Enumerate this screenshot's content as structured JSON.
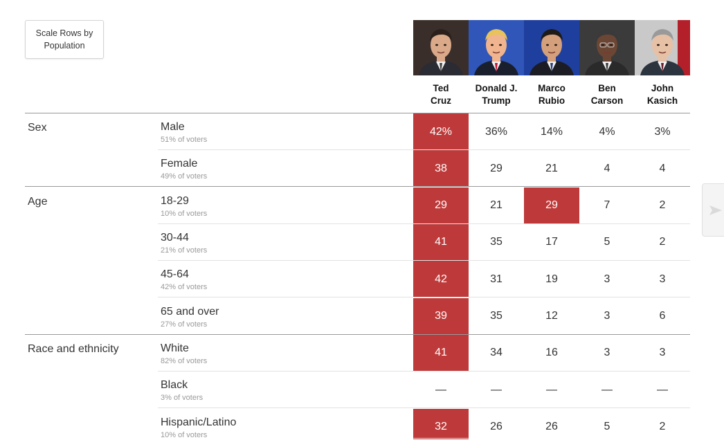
{
  "controls": {
    "scale_button_label": "Scale Rows by Population"
  },
  "colors": {
    "winner": "#be3a3a",
    "separator_strong": "#999999",
    "separator_light": "#e2e2e2",
    "muted_text": "#999999"
  },
  "chart_data": {
    "type": "table",
    "columns": [
      "Ted Cruz",
      "Donald J. Trump",
      "Marco Rubio",
      "Ben Carson",
      "John Kasich"
    ],
    "candidates": [
      {
        "name": "Ted\nCruz",
        "photo": "ted-cruz-photo",
        "bg": "#3a2e2a"
      },
      {
        "name": "Donald J.\nTrump",
        "photo": "donald-trump-photo",
        "bg": "#2f56b8"
      },
      {
        "name": "Marco\nRubio",
        "photo": "marco-rubio-photo",
        "bg": "#1f3f9e"
      },
      {
        "name": "Ben\nCarson",
        "photo": "ben-carson-photo",
        "bg": "#3b3b3b"
      },
      {
        "name": "John\nKasich",
        "photo": "john-kasich-photo",
        "bg": "#c9c9c9"
      }
    ],
    "groups": [
      {
        "label": "Sex",
        "rows": [
          {
            "label": "Male",
            "share": "51% of voters",
            "values": [
              "42%",
              "36%",
              "14%",
              "4%",
              "3%"
            ],
            "winners": [
              0
            ]
          },
          {
            "label": "Female",
            "share": "49% of voters",
            "values": [
              "38",
              "29",
              "21",
              "4",
              "4"
            ],
            "winners": [
              0
            ]
          }
        ]
      },
      {
        "label": "Age",
        "rows": [
          {
            "label": "18-29",
            "share": "10% of voters",
            "values": [
              "29",
              "21",
              "29",
              "7",
              "2"
            ],
            "winners": [
              0,
              2
            ]
          },
          {
            "label": "30-44",
            "share": "21% of voters",
            "values": [
              "41",
              "35",
              "17",
              "5",
              "2"
            ],
            "winners": [
              0
            ]
          },
          {
            "label": "45-64",
            "share": "42% of voters",
            "values": [
              "42",
              "31",
              "19",
              "3",
              "3"
            ],
            "winners": [
              0
            ]
          },
          {
            "label": "65 and over",
            "share": "27% of voters",
            "values": [
              "39",
              "35",
              "12",
              "3",
              "6"
            ],
            "winners": [
              0
            ]
          }
        ]
      },
      {
        "label": "Race and ethnicity",
        "rows": [
          {
            "label": "White",
            "share": "82% of voters",
            "values": [
              "41",
              "34",
              "16",
              "3",
              "3"
            ],
            "winners": [
              0
            ]
          },
          {
            "label": "Black",
            "share": "3% of voters",
            "values": [
              "—",
              "—",
              "—",
              "—",
              "—"
            ],
            "winners": []
          },
          {
            "label": "Hispanic/Latino",
            "share": "10% of voters",
            "values": [
              "32",
              "26",
              "26",
              "5",
              "2"
            ],
            "winners": [
              0
            ]
          }
        ]
      }
    ]
  }
}
